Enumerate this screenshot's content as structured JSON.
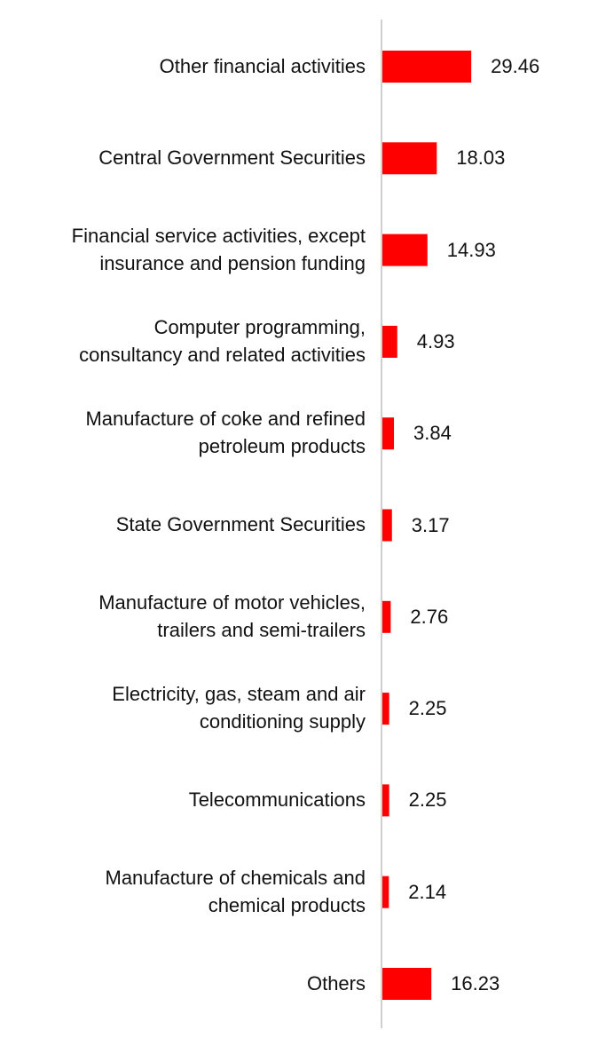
{
  "chart_data": {
    "type": "bar",
    "orientation": "horizontal",
    "title": "",
    "xlabel": "",
    "ylabel": "",
    "categories": [
      "Other financial activities",
      "Central Government Securities",
      "Financial service activities, except insurance and pension funding",
      "Computer programming, consultancy and related activities",
      "Manufacture of coke and refined petroleum products",
      "State Government Securities",
      "Manufacture of motor vehicles, trailers and semi-trailers",
      "Electricity, gas, steam and air conditioning supply",
      "Telecommunications",
      "Manufacture of chemicals and chemical products",
      "Others"
    ],
    "category_lines": [
      [
        "Other financial activities"
      ],
      [
        "Central Government Securities"
      ],
      [
        "Financial service activities, except",
        "insurance and pension funding"
      ],
      [
        "Computer programming,",
        "consultancy and related activities"
      ],
      [
        "Manufacture of coke and refined",
        "petroleum products"
      ],
      [
        "State Government Securities"
      ],
      [
        "Manufacture of motor vehicles,",
        "trailers and semi-trailers"
      ],
      [
        "Electricity, gas, steam and air",
        "conditioning supply"
      ],
      [
        "Telecommunications"
      ],
      [
        "Manufacture of chemicals and",
        "chemical products"
      ],
      [
        "Others"
      ]
    ],
    "values": [
      29.46,
      18.03,
      14.93,
      4.93,
      3.84,
      3.17,
      2.76,
      2.25,
      2.25,
      2.14,
      16.23
    ],
    "value_labels": [
      "29.46",
      "18.03",
      "14.93",
      "4.93",
      "3.84",
      "3.17",
      "2.76",
      "2.25",
      "2.25",
      "2.14",
      "16.23"
    ],
    "xlim": [
      0,
      30
    ],
    "grid": false,
    "legend": "none",
    "bar_color": "#ff0000",
    "axis_color": "#d0d0d0"
  }
}
